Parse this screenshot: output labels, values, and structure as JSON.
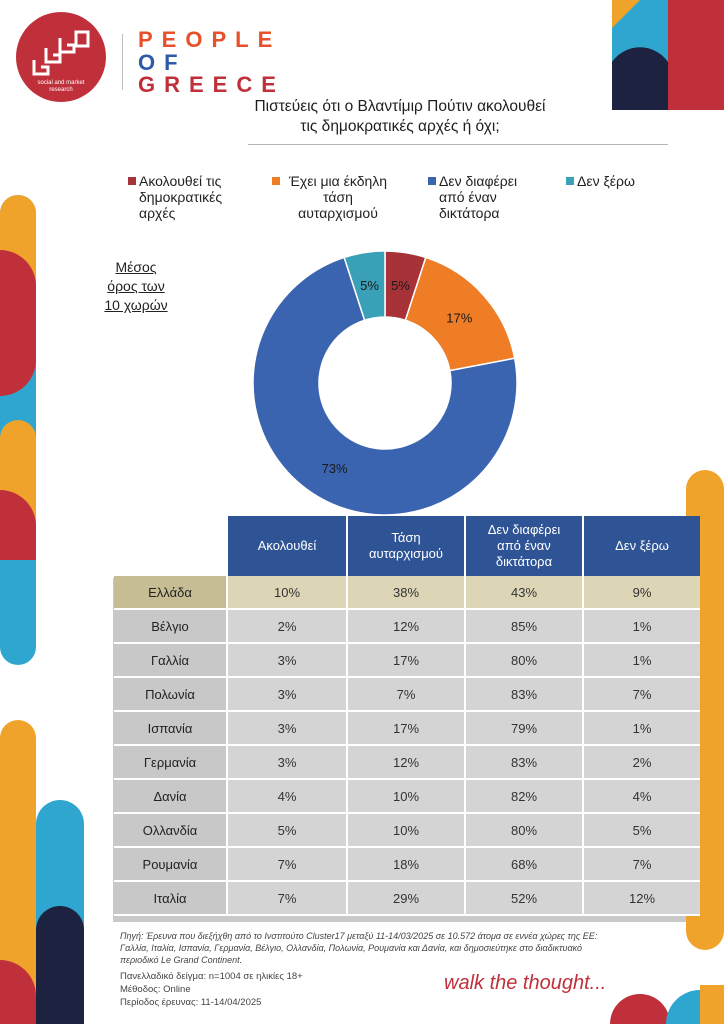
{
  "header": {
    "logo_subtitle": "social and market research",
    "brand_lines": [
      "PEOPLE",
      "OF",
      "GREECE"
    ],
    "question_lines": [
      "Πιστεύεις ότι ο Βλαντίμιρ Πούτιν ακολουθεί",
      "τις δημοκρατικές αρχές ή όχι;"
    ]
  },
  "colors": {
    "follows": "#a73237",
    "authoritarian": "#ee7d25",
    "dictator": "#3b64b0",
    "dont_know": "#3aa0b8",
    "table_header": "#2f5496",
    "greece_row": "#c7bd94"
  },
  "legend": [
    {
      "label_lines": [
        "Ακολουθεί τις",
        "δημοκρατικές",
        "αρχές"
      ],
      "color": "#a73237"
    },
    {
      "label_lines": [
        "Έχει μια έκδηλη",
        "τάση",
        "αυταρχισμού"
      ],
      "color": "#ee7d25"
    },
    {
      "label_lines": [
        "Δεν διαφέρει",
        "από έναν",
        "δικτάτορα"
      ],
      "color": "#3b64b0"
    },
    {
      "label_lines": [
        "Δεν ξέρω"
      ],
      "color": "#3aa0b8"
    }
  ],
  "average_label_lines": [
    "Μέσος",
    "όρος των",
    "10 χωρών"
  ],
  "chart_data": {
    "type": "pie",
    "donut": true,
    "categories": [
      "Ακολουθεί τις δημοκρατικές αρχές",
      "Έχει μια έκδηλη τάση αυταρχισμού",
      "Δεν διαφέρει από έναν δικτάτορα",
      "Δεν ξέρω"
    ],
    "values": [
      5,
      17,
      73,
      5
    ],
    "value_labels": [
      "5%",
      "17%",
      "73%",
      "5%"
    ],
    "colors": [
      "#a73237",
      "#ee7d25",
      "#3b64b0",
      "#3aa0b8"
    ],
    "legend_position": "top"
  },
  "table": {
    "headers": [
      [
        "Ακολουθεί"
      ],
      [
        "Τάση",
        "αυταρχισμού"
      ],
      [
        "Δεν διαφέρει",
        "από έναν",
        "δικτάτορα"
      ],
      [
        "Δεν ξέρω"
      ]
    ],
    "rows": [
      {
        "country": "Ελλάδα",
        "values": [
          "10%",
          "38%",
          "43%",
          "9%"
        ]
      },
      {
        "country": "Βέλγιο",
        "values": [
          "2%",
          "12%",
          "85%",
          "1%"
        ]
      },
      {
        "country": "Γαλλία",
        "values": [
          "3%",
          "17%",
          "80%",
          "1%"
        ]
      },
      {
        "country": "Πολωνία",
        "values": [
          "3%",
          "7%",
          "83%",
          "7%"
        ]
      },
      {
        "country": "Ισπανία",
        "values": [
          "3%",
          "17%",
          "79%",
          "1%"
        ]
      },
      {
        "country": "Γερμανία",
        "values": [
          "3%",
          "12%",
          "83%",
          "2%"
        ]
      },
      {
        "country": "Δανία",
        "values": [
          "4%",
          "10%",
          "82%",
          "4%"
        ]
      },
      {
        "country": "Ολλανδία",
        "values": [
          "5%",
          "10%",
          "80%",
          "5%"
        ]
      },
      {
        "country": "Ρουμανία",
        "values": [
          "7%",
          "18%",
          "68%",
          "7%"
        ]
      },
      {
        "country": "Ιταλία",
        "values": [
          "7%",
          "29%",
          "52%",
          "12%"
        ]
      }
    ]
  },
  "footer": {
    "source_lines": [
      "Πηγή: Έρευνα που διεξήχθη από το Ινστιτούτο Cluster17 μεταξύ 11-14/03/2025 σε 10.572 άτομα σε εννέα χώρες της ΕΕ:",
      "Γαλλία, Ιταλία, Ισπανία, Γερμανία, Βέλγιο, Ολλανδία, Πολωνία, Ρουμανία και Δανία, και δημοσιεύτηκε στο διαδικτυακό",
      "περιοδικό Le Grand Continent."
    ],
    "sample": "Πανελλαδικό δείγμα: n=1004 σε ηλικίες 18+",
    "method": "Μέθοδος: Online",
    "period": "Περίοδος έρευνας: 11-14/04/2025",
    "tagline": "walk the thought..."
  }
}
